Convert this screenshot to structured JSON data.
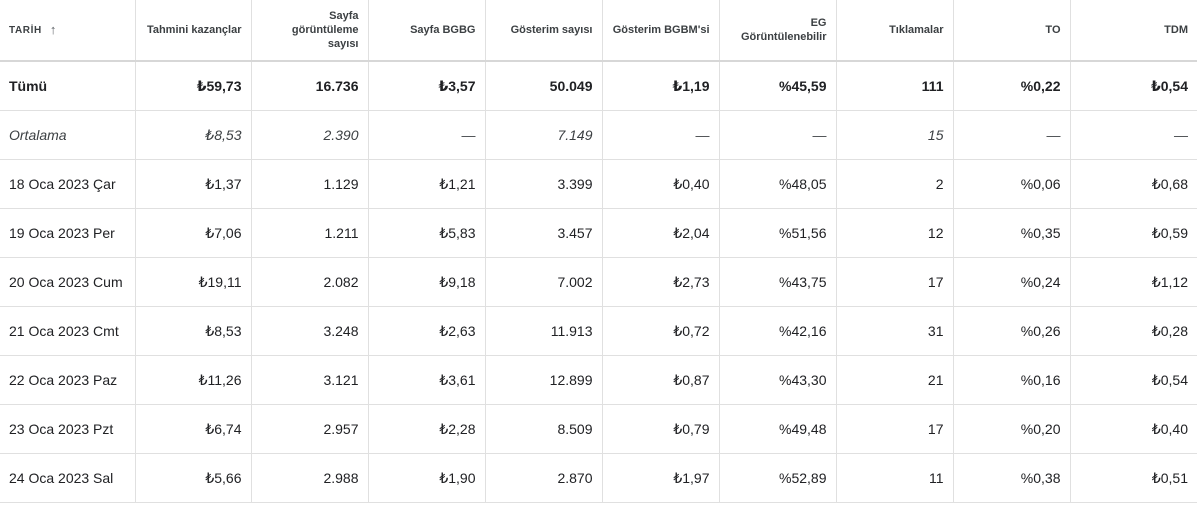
{
  "columns": {
    "date": "TARİH",
    "sort_icon": "arrow-up-icon",
    "est_earnings": "Tahmini kazançlar",
    "page_views": "Sayfa görüntüleme sayısı",
    "page_rpm": "Sayfa BGBG",
    "impressions": "Gösterim sayısı",
    "impression_rpm": "Gösterim BGBM'si",
    "active_view": "EG Görüntülenebilir",
    "clicks": "Tıklamalar",
    "ctr": "TO",
    "cpc": "TDM"
  },
  "total": {
    "label": "Tümü",
    "cells": [
      "₺59,73",
      "16.736",
      "₺3,57",
      "50.049",
      "₺1,19",
      "%45,59",
      "111",
      "%0,22",
      "₺0,54"
    ]
  },
  "average": {
    "label": "Ortalama",
    "cells": [
      "₺8,53",
      "2.390",
      "—",
      "7.149",
      "—",
      "—",
      "15",
      "—",
      "—"
    ]
  },
  "rows": [
    {
      "date": "18 Oca 2023 Çar",
      "cells": [
        "₺1,37",
        "1.129",
        "₺1,21",
        "3.399",
        "₺0,40",
        "%48,05",
        "2",
        "%0,06",
        "₺0,68"
      ]
    },
    {
      "date": "19 Oca 2023 Per",
      "cells": [
        "₺7,06",
        "1.211",
        "₺5,83",
        "3.457",
        "₺2,04",
        "%51,56",
        "12",
        "%0,35",
        "₺0,59"
      ]
    },
    {
      "date": "20 Oca 2023 Cum",
      "cells": [
        "₺19,11",
        "2.082",
        "₺9,18",
        "7.002",
        "₺2,73",
        "%43,75",
        "17",
        "%0,24",
        "₺1,12"
      ]
    },
    {
      "date": "21 Oca 2023 Cmt",
      "cells": [
        "₺8,53",
        "3.248",
        "₺2,63",
        "11.913",
        "₺0,72",
        "%42,16",
        "31",
        "%0,26",
        "₺0,28"
      ]
    },
    {
      "date": "22 Oca 2023 Paz",
      "cells": [
        "₺11,26",
        "3.121",
        "₺3,61",
        "12.899",
        "₺0,87",
        "%43,30",
        "21",
        "%0,16",
        "₺0,54"
      ]
    },
    {
      "date": "23 Oca 2023 Pzt",
      "cells": [
        "₺6,74",
        "2.957",
        "₺2,28",
        "8.509",
        "₺0,79",
        "%49,48",
        "17",
        "%0,20",
        "₺0,40"
      ]
    },
    {
      "date": "24 Oca 2023 Sal",
      "cells": [
        "₺5,66",
        "2.988",
        "₺1,90",
        "2.870",
        "₺1,97",
        "%52,89",
        "11",
        "%0,38",
        "₺0,51"
      ]
    }
  ]
}
